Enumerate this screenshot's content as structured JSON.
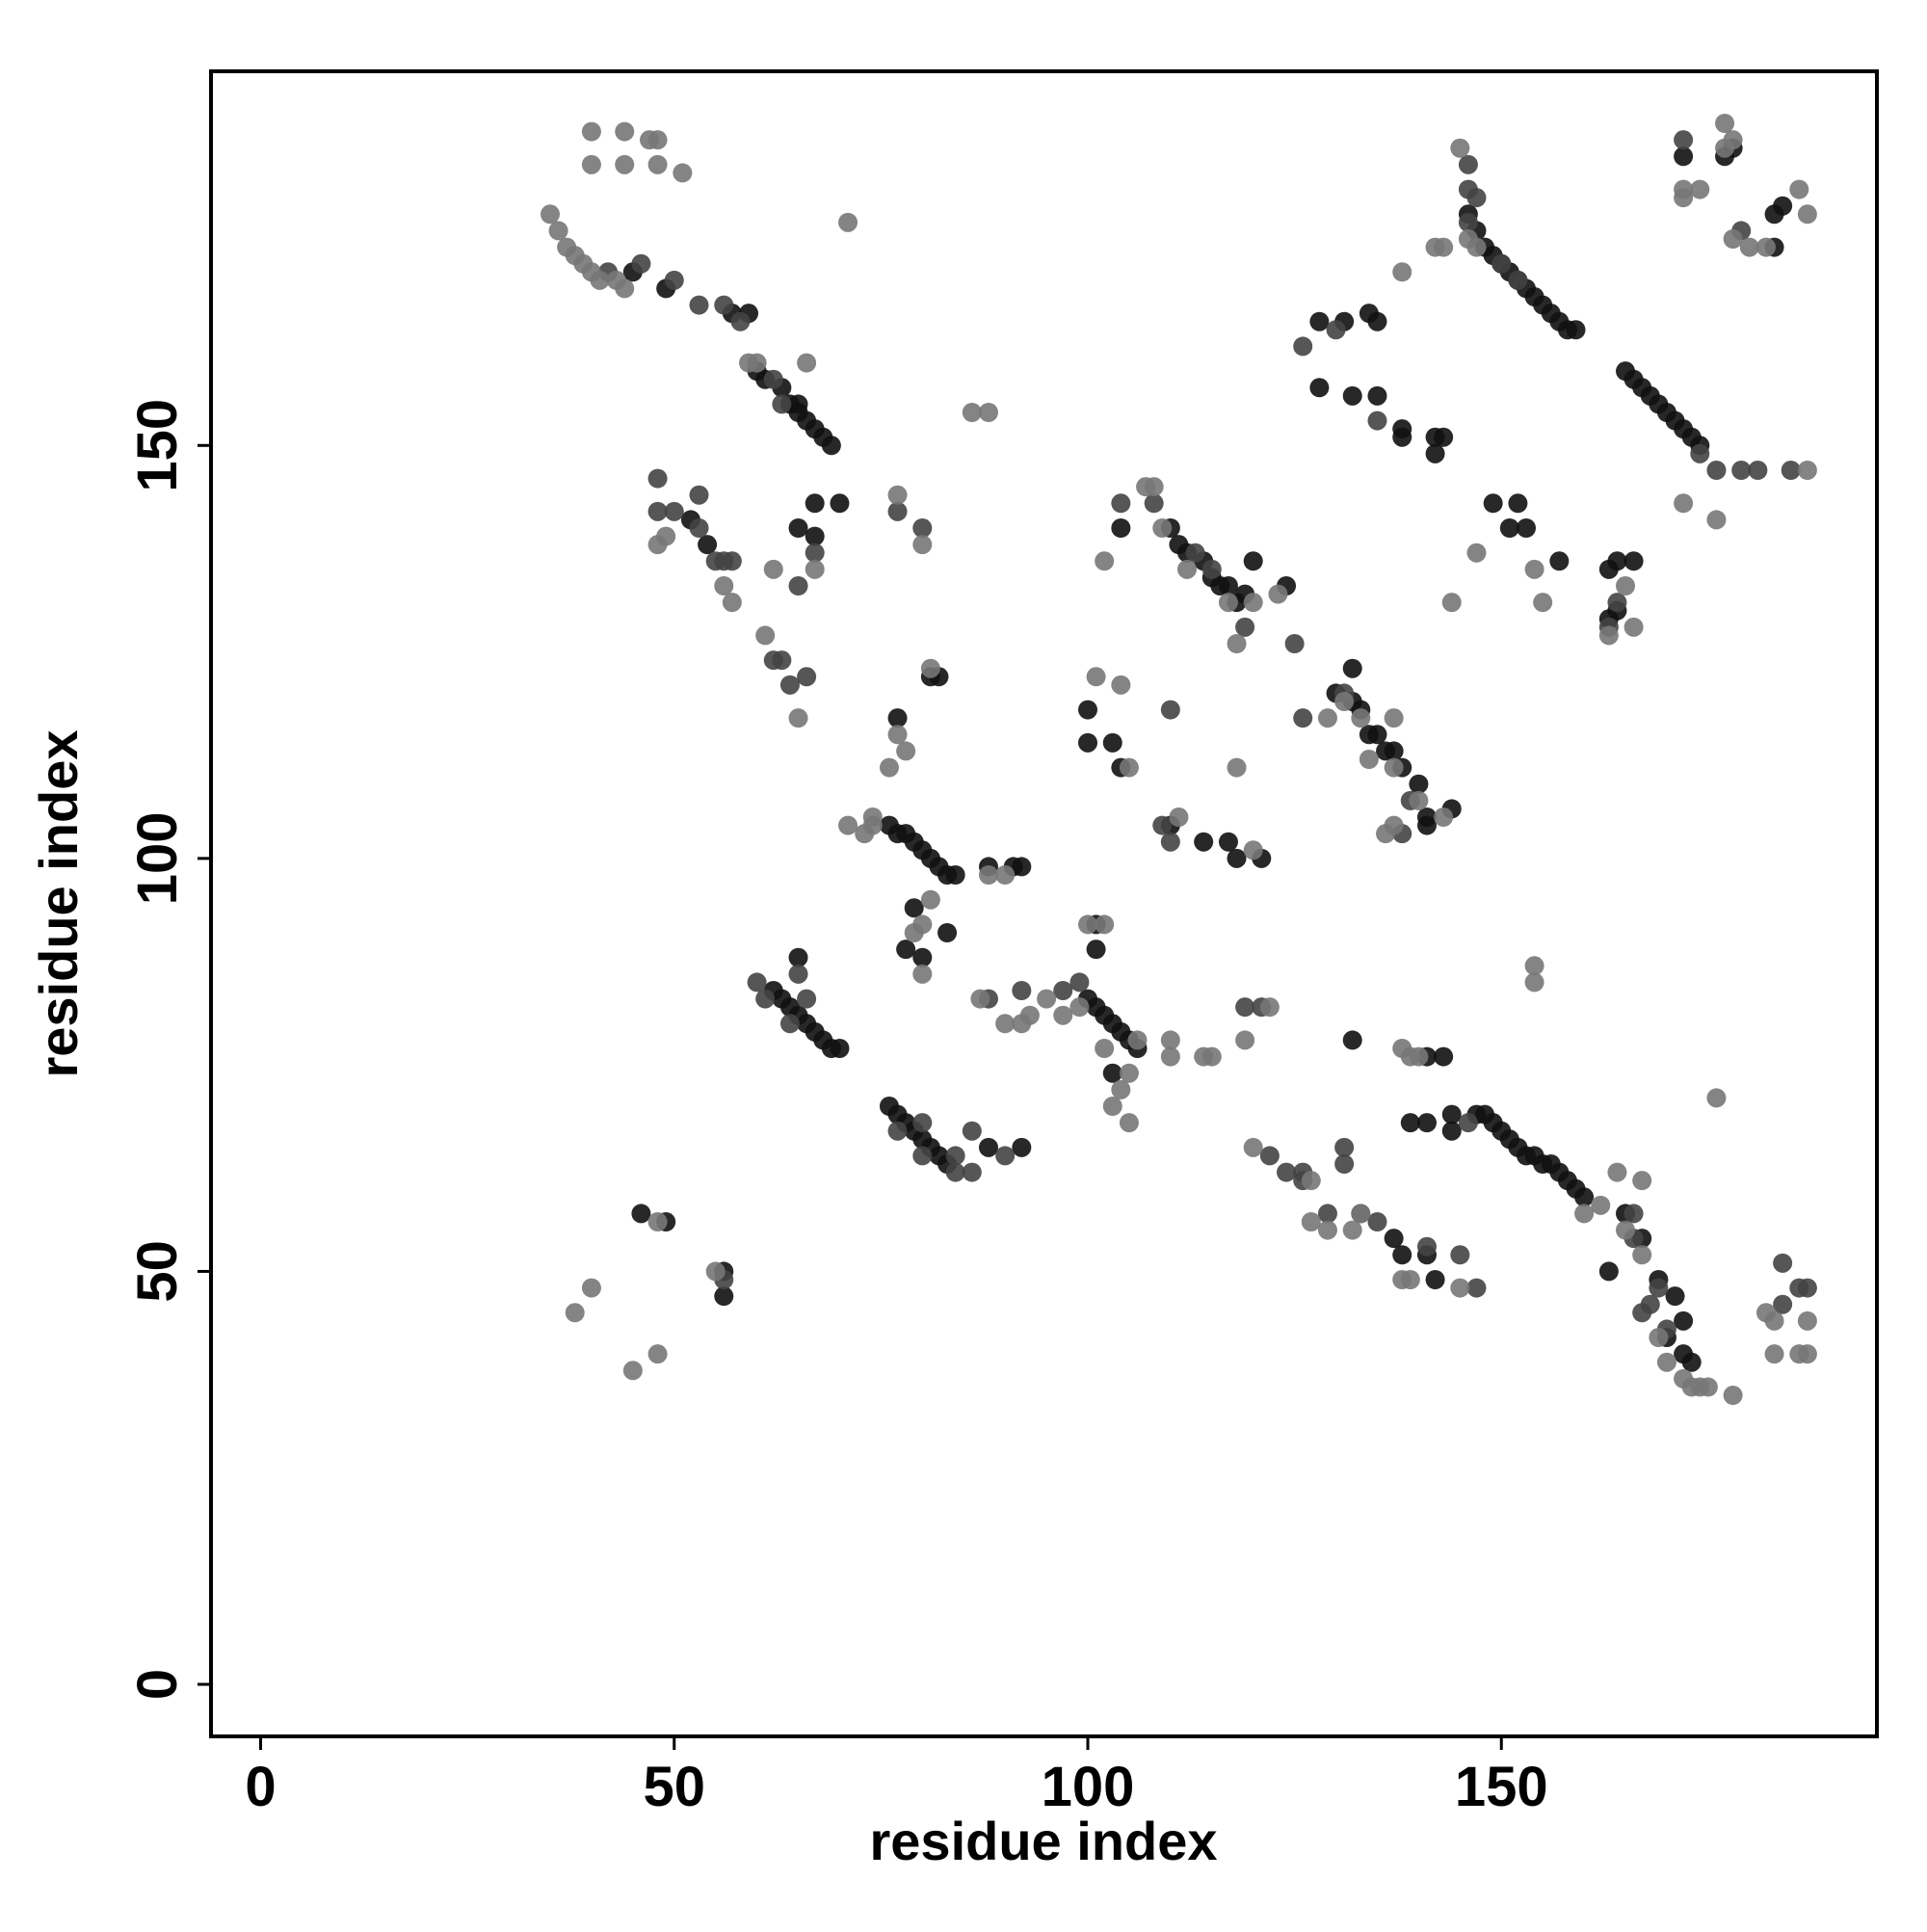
{
  "chart_data": {
    "type": "scatter",
    "xlabel": "residue index",
    "ylabel": "residue index",
    "xlim": [
      -6,
      195.4
    ],
    "ylim": [
      -6.3,
      195.3
    ],
    "xticks": [
      0,
      50,
      100,
      150
    ],
    "yticks": [
      0,
      50,
      100,
      150
    ],
    "series": [
      {
        "color": "#111111",
        "x": [
          45,
          49,
          57,
          59,
          60,
          61,
          63,
          64,
          65,
          66,
          67,
          68,
          69,
          65,
          67,
          70,
          65,
          67,
          52,
          54,
          146,
          147,
          148,
          149,
          150,
          151,
          152,
          153,
          154,
          155,
          156,
          157,
          158,
          159,
          165,
          166,
          167,
          168,
          169,
          170,
          171,
          172,
          173,
          174,
          128,
          131,
          134,
          135,
          128,
          132,
          135,
          138,
          142,
          143,
          142,
          138,
          151,
          153,
          149,
          152,
          157,
          163,
          164,
          164,
          166,
          172,
          177,
          178,
          183,
          184,
          183,
          163,
          77,
          81,
          82,
          76,
          77,
          78,
          79,
          80,
          81,
          82,
          83,
          84,
          88,
          91,
          92,
          79,
          78,
          83,
          80,
          101,
          101,
          100,
          101,
          102,
          103,
          104,
          105,
          106,
          103,
          100,
          103,
          104,
          100,
          104,
          110,
          111,
          112,
          114,
          115,
          116,
          117,
          118,
          119,
          120,
          124,
          110,
          114,
          117,
          118,
          121,
          132,
          130,
          132,
          133,
          134,
          135,
          136,
          137,
          138,
          140,
          141,
          141,
          144,
          62,
          63,
          64,
          65,
          66,
          67,
          68,
          69,
          70,
          65,
          76,
          77,
          78,
          79,
          80,
          81,
          82,
          83,
          88,
          92,
          132,
          141,
          143,
          147,
          148,
          149,
          150,
          151,
          152,
          153,
          154,
          155,
          156,
          157,
          158,
          159,
          160,
          165,
          167,
          163,
          169,
          171,
          172,
          170,
          172,
          173,
          139,
          141,
          144,
          144,
          137,
          138,
          141,
          142,
          46,
          49,
          56,
          56
        ],
        "values": [
          171,
          169,
          166,
          166,
          159,
          158,
          157,
          155,
          154,
          153,
          152,
          151,
          150,
          155,
          143,
          143,
          140,
          139,
          141,
          138,
          178,
          176,
          174,
          173,
          172,
          171,
          170,
          169,
          168,
          167,
          166,
          165,
          164,
          164,
          159,
          158,
          157,
          156,
          155,
          154,
          153,
          152,
          151,
          150,
          165,
          165,
          166,
          165,
          157,
          156,
          156,
          152,
          151,
          151,
          149,
          151,
          140,
          140,
          143,
          143,
          136,
          129,
          130,
          136,
          136,
          185,
          185,
          186,
          178,
          179,
          174,
          135,
          117,
          122,
          122,
          104,
          103,
          103,
          102,
          101,
          100,
          99,
          98,
          98,
          99,
          99,
          99,
          94,
          89,
          91,
          88,
          92,
          89,
          83,
          82,
          81,
          80,
          79,
          78,
          77,
          74,
          114,
          114,
          111,
          118,
          140,
          140,
          138,
          137,
          136,
          134,
          133,
          133,
          131,
          132,
          136,
          133,
          104,
          102,
          102,
          100,
          100,
          123,
          120,
          119,
          118,
          115,
          115,
          113,
          113,
          111,
          109,
          105,
          104,
          106,
          84,
          83,
          82,
          81,
          80,
          79,
          78,
          77,
          77,
          88,
          70,
          69,
          68,
          67,
          66,
          65,
          64,
          63,
          65,
          65,
          78,
          76,
          76,
          69,
          69,
          68,
          67,
          66,
          65,
          64,
          64,
          63,
          63,
          62,
          61,
          60,
          59,
          57,
          54,
          50,
          49,
          47,
          44,
          42,
          40,
          39,
          68,
          68,
          69,
          67,
          54,
          52,
          52,
          49,
          57,
          56,
          50,
          47
        ]
      },
      {
        "color": "#444444",
        "x": [
          42,
          46,
          50,
          53,
          56,
          58,
          62,
          63,
          48,
          48,
          50,
          53,
          53,
          55,
          56,
          57,
          62,
          63,
          64,
          66,
          67,
          65,
          77,
          80,
          126,
          130,
          135,
          146,
          146,
          147,
          146,
          150,
          152,
          163,
          164,
          174,
          176,
          179,
          181,
          185,
          172,
          179,
          88,
          92,
          97,
          99,
          108,
          104,
          110,
          113,
          119,
          125,
          115,
          126,
          131,
          139,
          138,
          65,
          66,
          61,
          60,
          64,
          77,
          80,
          80,
          84,
          84,
          86,
          90,
          86,
          129,
          133,
          135,
          141,
          145,
          147,
          126,
          131,
          131,
          166,
          166,
          169,
          168,
          167,
          170,
          184,
          184,
          186,
          187,
          119,
          121,
          122,
          124,
          126,
          146,
          56,
          109,
          110
        ],
        "values": [
          171,
          172,
          170,
          167,
          167,
          165,
          158,
          155,
          146,
          142,
          142,
          144,
          140,
          136,
          136,
          136,
          124,
          124,
          121,
          122,
          137,
          133,
          142,
          140,
          162,
          164,
          153,
          184,
          181,
          180,
          177,
          172,
          170,
          128,
          131,
          149,
          147,
          147,
          147,
          147,
          187,
          176,
          83,
          84,
          84,
          85,
          143,
          143,
          118,
          137,
          128,
          126,
          135,
          117,
          120,
          107,
          103,
          86,
          83,
          83,
          85,
          80,
          67,
          68,
          64,
          62,
          64,
          62,
          64,
          67,
          57,
          57,
          56,
          53,
          52,
          48,
          62,
          63,
          65,
          57,
          54,
          48,
          46,
          45,
          43,
          46,
          51,
          48,
          48,
          82,
          82,
          64,
          62,
          61,
          68,
          49,
          104,
          102
        ]
      },
      {
        "color": "#777777",
        "x": [
          35,
          36,
          37,
          38,
          39,
          40,
          41,
          43,
          44,
          40,
          44,
          47,
          48,
          40,
          44,
          48,
          51,
          71,
          86,
          88,
          59,
          60,
          66,
          48,
          49,
          56,
          57,
          61,
          65,
          62,
          67,
          77,
          80,
          76,
          77,
          78,
          81,
          79,
          80,
          81,
          80,
          88,
          90,
          71,
          74,
          74,
          73,
          87,
          90,
          92,
          100,
          102,
          104,
          105,
          103,
          105,
          102,
          107,
          108,
          109,
          102,
          112,
          117,
          120,
          118,
          123,
          104,
          101,
          105,
          111,
          118,
          120,
          131,
          129,
          133,
          134,
          137,
          137,
          137,
          140,
          143,
          136,
          144,
          147,
          138,
          142,
          143,
          145,
          146,
          147,
          154,
          155,
          176,
          172,
          165,
          163,
          166,
          172,
          174,
          177,
          178,
          180,
          182,
          186,
          187,
          187,
          177,
          178,
          172,
          154,
          154,
          176,
          164,
          167,
          165,
          167,
          160,
          162,
          169,
          170,
          172,
          173,
          174,
          175,
          178,
          182,
          183,
          186,
          187,
          183,
          187,
          120,
          127,
          127,
          129,
          132,
          133,
          138,
          139,
          145,
          139,
          140,
          138,
          110,
          110,
          114,
          115,
          119,
          122,
          38,
          40,
          45,
          48,
          106,
          97,
          93,
          95,
          99,
          48,
          55
        ],
        "values": [
          178,
          176,
          174,
          173,
          172,
          171,
          170,
          170,
          169,
          188,
          188,
          187,
          187,
          184,
          184,
          184,
          183,
          177,
          154,
          154,
          160,
          160,
          160,
          138,
          139,
          133,
          131,
          127,
          117,
          135,
          135,
          144,
          138,
          111,
          115,
          113,
          123,
          91,
          92,
          95,
          86,
          98,
          98,
          104,
          104,
          105,
          103,
          83,
          80,
          80,
          92,
          92,
          72,
          74,
          70,
          68,
          77,
          145,
          145,
          140,
          136,
          135,
          131,
          131,
          126,
          132,
          121,
          122,
          111,
          105,
          111,
          101,
          119,
          117,
          117,
          112,
          117,
          111,
          104,
          107,
          105,
          103,
          131,
          137,
          171,
          174,
          174,
          186,
          175,
          174,
          135,
          131,
          141,
          143,
          133,
          127,
          128,
          180,
          181,
          189,
          187,
          174,
          174,
          181,
          178,
          147,
          186,
          175,
          181,
          87,
          85,
          71,
          62,
          61,
          55,
          52,
          57,
          58,
          42,
          39,
          37,
          36,
          36,
          36,
          35,
          45,
          44,
          40,
          44,
          40,
          40,
          65,
          61,
          56,
          55,
          55,
          57,
          49,
          49,
          48,
          76,
          76,
          77,
          78,
          76,
          76,
          76,
          78,
          82,
          45,
          48,
          38,
          40,
          78,
          81,
          81,
          83,
          82,
          56,
          50
        ]
      }
    ],
    "frame": true
  }
}
